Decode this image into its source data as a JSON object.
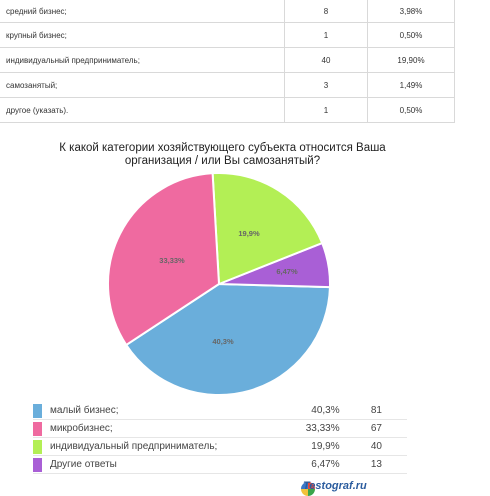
{
  "table": {
    "rows": [
      {
        "label": "средний бизнес;",
        "count": "8",
        "percent": "3,98%"
      },
      {
        "label": "крупный бизнес;",
        "count": "1",
        "percent": "0,50%"
      },
      {
        "label": "индивидуальный предприниматель;",
        "count": "40",
        "percent": "19,90%"
      },
      {
        "label": "самозанятый;",
        "count": "3",
        "percent": "1,49%"
      },
      {
        "label": "другое (указать).",
        "count": "1",
        "percent": "0,50%"
      }
    ]
  },
  "chart_data": {
    "type": "pie",
    "title": "К какой категории хозяйствующего субъекта относится Ваша организация / или Вы самозанятый?",
    "slices": [
      {
        "label": "малый бизнес;",
        "percent_label": "40,3%",
        "value": 40.3,
        "count": "81",
        "color": "#6aaedb"
      },
      {
        "label": "микробизнес;",
        "percent_label": "33,33%",
        "value": 33.33,
        "count": "67",
        "color": "#ef6aa0"
      },
      {
        "label": "индивидуальный предприниматель;",
        "percent_label": "19,9%",
        "value": 19.9,
        "count": "40",
        "color": "#b3ef55"
      },
      {
        "label": "Другие ответы",
        "percent_label": "6,47%",
        "value": 6.47,
        "count": "13",
        "color": "#a95fd6"
      }
    ]
  },
  "brand": {
    "name": "Testograf.ru"
  }
}
